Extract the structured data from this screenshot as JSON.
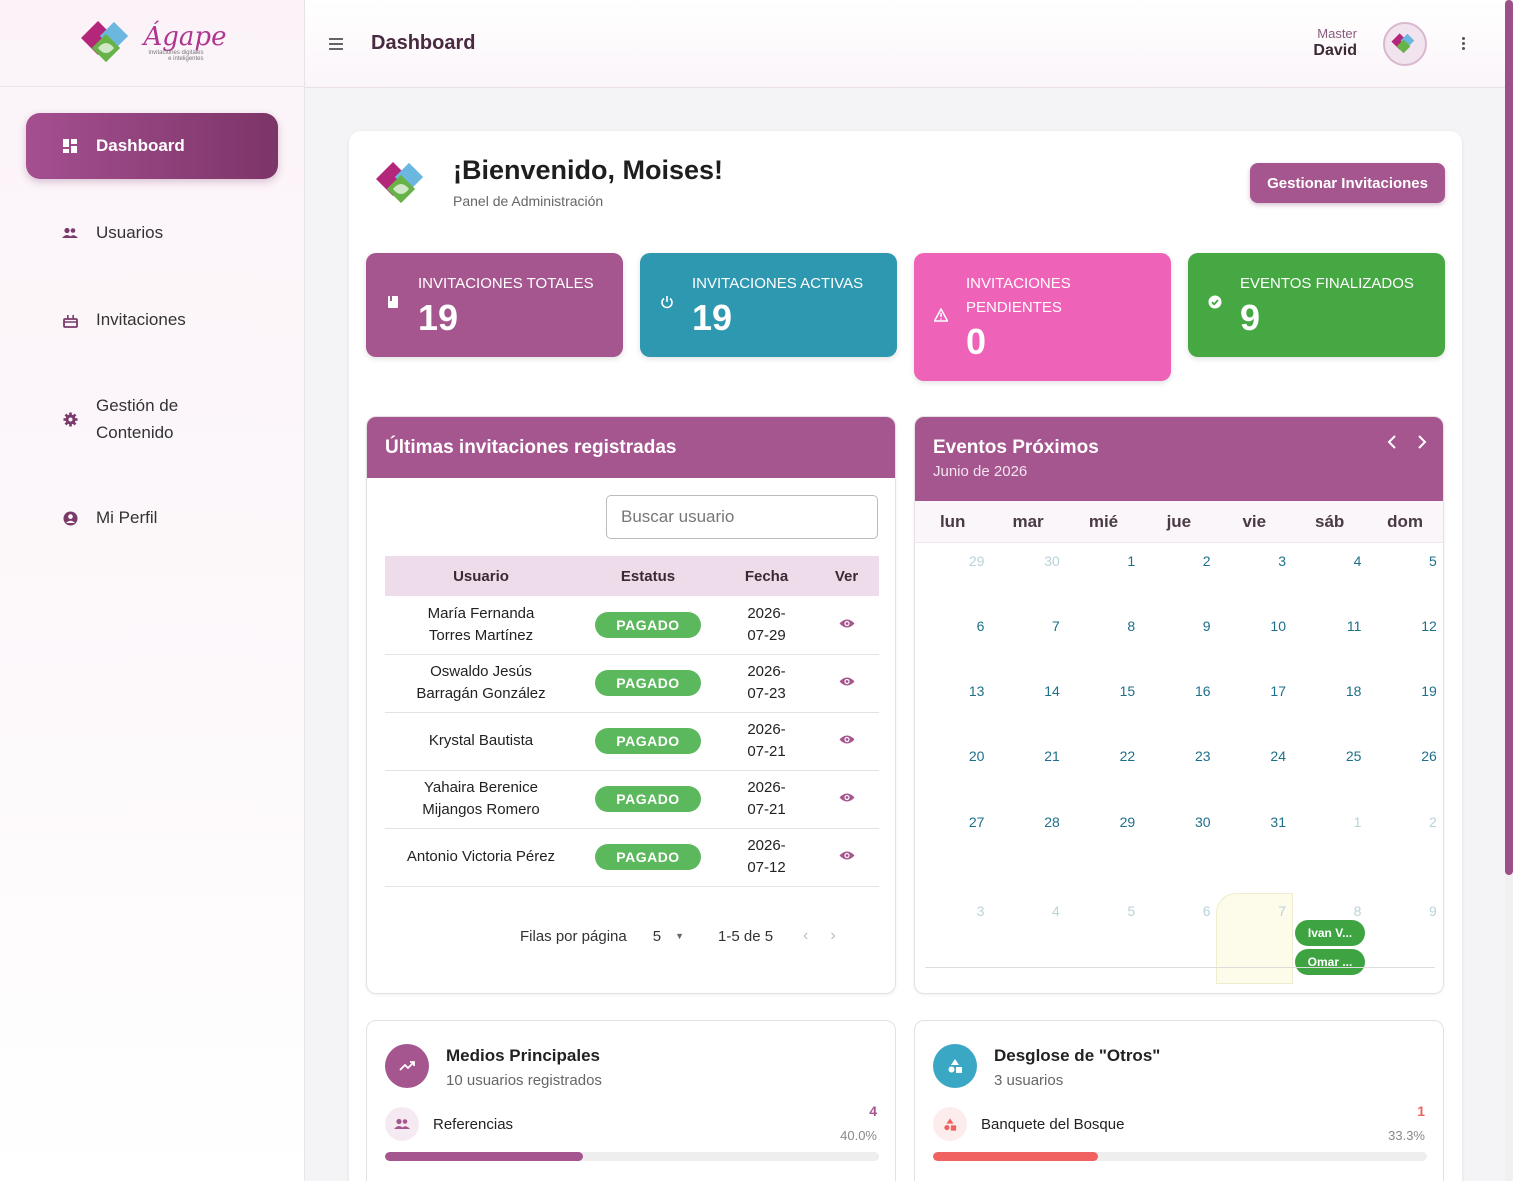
{
  "brand": {
    "name": "Ágape",
    "tagline": "invitaciones digitales e inteligentes"
  },
  "sidebar": {
    "items": [
      {
        "label": "Dashboard",
        "icon": "dashboard-icon",
        "active": true
      },
      {
        "label": "Usuarios",
        "icon": "users-icon"
      },
      {
        "label": "Invitaciones",
        "icon": "cake-icon"
      },
      {
        "label": "Gestión de Contenido",
        "icon": "gear-icon"
      },
      {
        "label": "Mi Perfil",
        "icon": "account-circle-icon"
      }
    ]
  },
  "header": {
    "title": "Dashboard",
    "user_role": "Master",
    "user_name": "David"
  },
  "welcome": {
    "title": "¡Bienvenido, Moises!",
    "subtitle": "Panel de Administración",
    "button": "Gestionar Invitaciones"
  },
  "stats": [
    {
      "label": "INVITACIONES TOTALES",
      "value": "19",
      "color": "#a5568f",
      "icon": "book-icon"
    },
    {
      "label": "INVITACIONES ACTIVAS",
      "value": "19",
      "color": "#2e98b0",
      "icon": "power-icon"
    },
    {
      "label": "INVITACIONES PENDIENTES",
      "value": "0",
      "color": "#ee62b8",
      "icon": "warning-icon"
    },
    {
      "label": "EVENTOS FINALIZADOS",
      "value": "9",
      "color": "#45a843",
      "icon": "check-circle-icon"
    }
  ],
  "invitations": {
    "title": "Últimas invitaciones registradas",
    "search_placeholder": "Buscar usuario",
    "columns": [
      "Usuario",
      "Estatus",
      "Fecha",
      "Ver"
    ],
    "rows": [
      {
        "user_line1": "María Fernanda",
        "user_line2": "Torres Martínez",
        "status": "PAGADO",
        "date_line1": "2026-",
        "date_line2": "07-29"
      },
      {
        "user_line1": "Oswaldo Jesús",
        "user_line2": "Barragán González",
        "status": "PAGADO",
        "date_line1": "2026-",
        "date_line2": "07-23"
      },
      {
        "user_line1": "Krystal Bautista",
        "user_line2": "",
        "status": "PAGADO",
        "date_line1": "2026-",
        "date_line2": "07-21"
      },
      {
        "user_line1": "Yahaira Berenice",
        "user_line2": "Mijangos Romero",
        "status": "PAGADO",
        "date_line1": "2026-",
        "date_line2": "07-21"
      },
      {
        "user_line1": "Antonio Victoria Pérez",
        "user_line2": "",
        "status": "PAGADO",
        "date_line1": "2026-",
        "date_line2": "07-12"
      }
    ],
    "pager": {
      "rows_label": "Filas por página",
      "rows_value": "5",
      "range": "1-5 de 5"
    }
  },
  "calendar": {
    "title": "Eventos Próximos",
    "subtitle": "Junio de 2026",
    "days_of_week": [
      "lun",
      "mar",
      "mié",
      "jue",
      "vie",
      "sáb",
      "dom"
    ],
    "weeks": [
      [
        "29",
        "30",
        "1",
        "2",
        "3",
        "4",
        "5"
      ],
      [
        "6",
        "7",
        "8",
        "9",
        "10",
        "11",
        "12"
      ],
      [
        "13",
        "14",
        "15",
        "16",
        "17",
        "18",
        "19"
      ],
      [
        "20",
        "21",
        "22",
        "23",
        "24",
        "25",
        "26"
      ],
      [
        "27",
        "28",
        "29",
        "30",
        "31",
        "1",
        "2"
      ],
      [
        "3",
        "4",
        "5",
        "6",
        "7",
        "8",
        "9"
      ]
    ],
    "events": [
      "Ivan V...",
      "Omar ..."
    ]
  },
  "media": {
    "title": "Medios Principales",
    "subtitle": "10 usuarios registrados",
    "item_label": "Referencias",
    "item_count": "4",
    "item_pct": "40.0%",
    "item_fraction": 0.4,
    "color": "#a5568f"
  },
  "others": {
    "title": "Desglose de \"Otros\"",
    "subtitle": "3 usuarios",
    "item_label": "Banquete del Bosque",
    "item_count": "1",
    "item_pct": "33.3%",
    "item_fraction": 0.333,
    "color": "#f06262",
    "circle_color": "#3aa8c4"
  }
}
